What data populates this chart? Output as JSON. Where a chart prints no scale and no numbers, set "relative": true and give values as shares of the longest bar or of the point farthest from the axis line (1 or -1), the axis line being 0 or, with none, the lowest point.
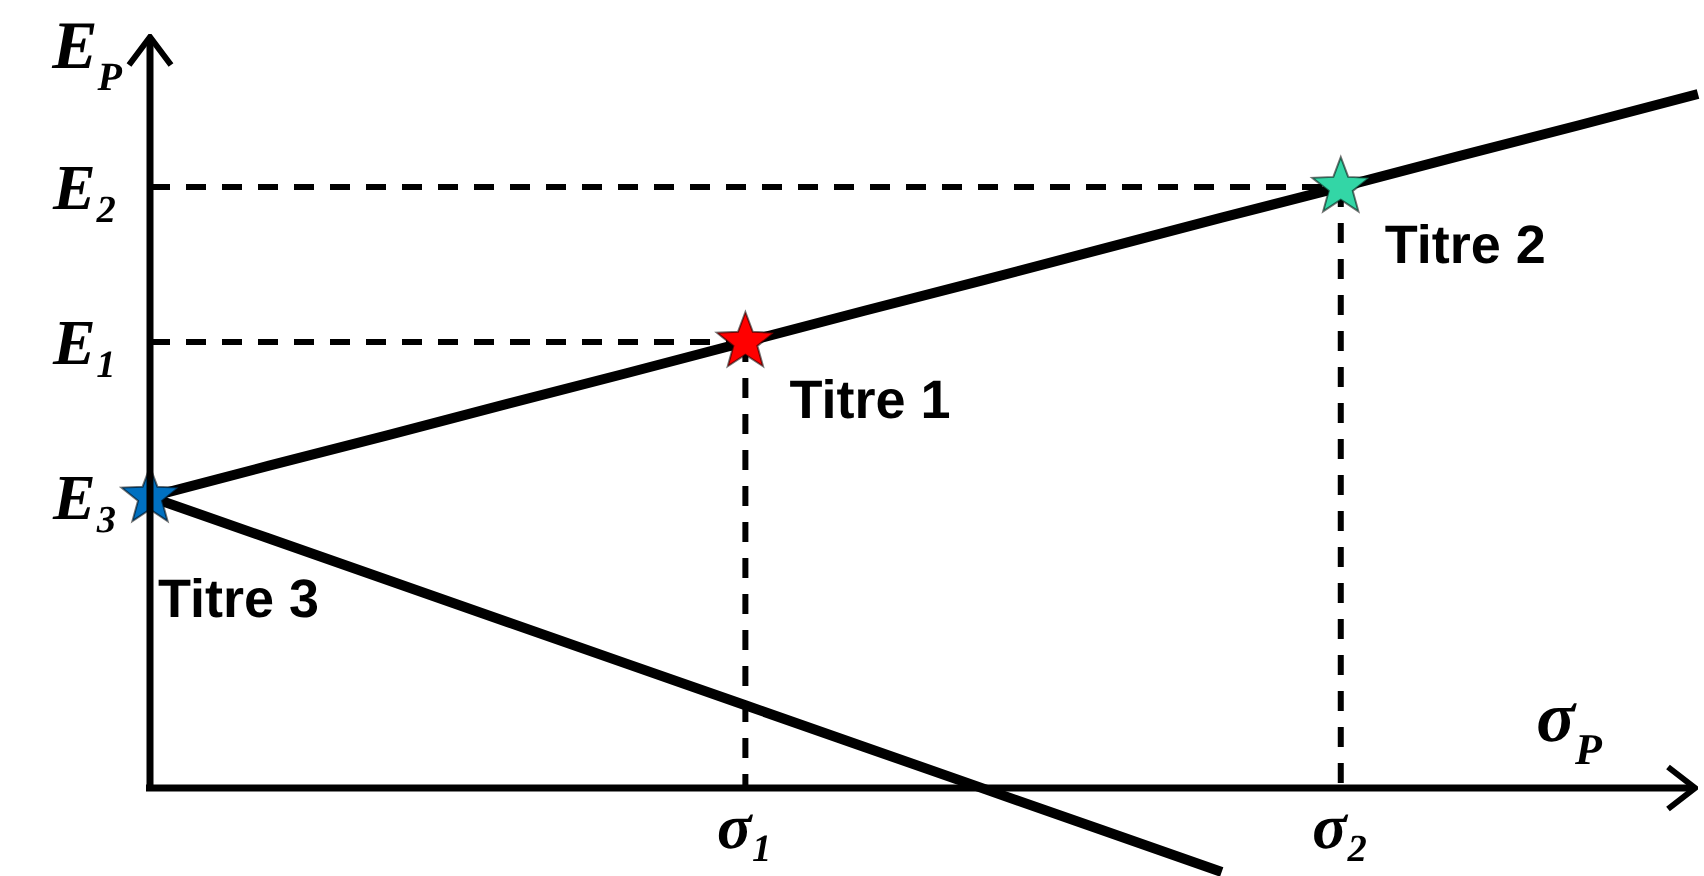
{
  "chart_data": {
    "type": "line",
    "relative": true,
    "xlabel": "σ$_{P}$",
    "ylabel": "E$_{P}$",
    "marker": "none",
    "categories": [
      null,
      null,
      null,
      null,
      null,
      "σ₁",
      null,
      null,
      null,
      null,
      "σ₂",
      null,
      null,
      null
    ],
    "annotations": [
      "E₂",
      "E₁",
      "E₃"
    ],
    "series": [
      {
        "color": "#000000",
        "values": [
          0.42,
          0.465,
          0.509,
          0.554,
          0.598,
          0.643,
          0.688,
          0.732,
          0.777,
          0.822,
          0.866,
          0.911,
          0.955,
          1.0
        ]
      },
      {
        "color": "#000000",
        "values": [
          0.42,
          0.36,
          0.3,
          0.24,
          0.18,
          0.12,
          0.06,
          0.0,
          -0.06,
          -0.12,
          null,
          null,
          null,
          null
        ]
      },
      {
        "color": "#000000",
        "line_style": "dashed",
        "values": [
          0.643,
          0.643,
          0.643,
          0.643,
          0.643,
          0.643,
          null,
          null,
          null,
          null,
          null,
          null,
          null,
          null
        ]
      },
      {
        "color": "#000000",
        "line_style": "dashed",
        "x": [
          "σ₁",
          "σ₁"
        ],
        "values": [
          0.643,
          0
        ]
      },
      {
        "color": "#000000",
        "line_style": "dashed",
        "values": [
          0.866,
          0.866,
          0.866,
          0.866,
          0.866,
          0.866,
          0.866,
          0.866,
          0.866,
          0.866,
          0.866,
          null,
          null,
          null
        ]
      },
      {
        "color": "#000000",
        "line_style": "dashed",
        "x": [
          "σ₂",
          "σ₂"
        ],
        "values": [
          0.866,
          0
        ]
      },
      {
        "type": "scatter",
        "name": "Titre 1",
        "color": "#ff0000",
        "marker": "star",
        "values": [
          null,
          null,
          null,
          null,
          null,
          0.643,
          null,
          null,
          null,
          null,
          null,
          null,
          null,
          null
        ]
      },
      {
        "type": "scatter",
        "name": "Titre 2",
        "color": "#33d6a6",
        "marker": "star",
        "values": [
          null,
          null,
          null,
          null,
          null,
          null,
          null,
          null,
          null,
          null,
          0.866,
          null,
          null,
          null
        ]
      },
      {
        "type": "scatter",
        "name": "Titre 3",
        "color": "#0070c0",
        "marker": "star",
        "values": [
          0.42,
          null,
          null,
          null,
          null,
          null,
          null,
          null,
          null,
          null,
          null,
          null,
          null,
          null
        ]
      }
    ]
  }
}
